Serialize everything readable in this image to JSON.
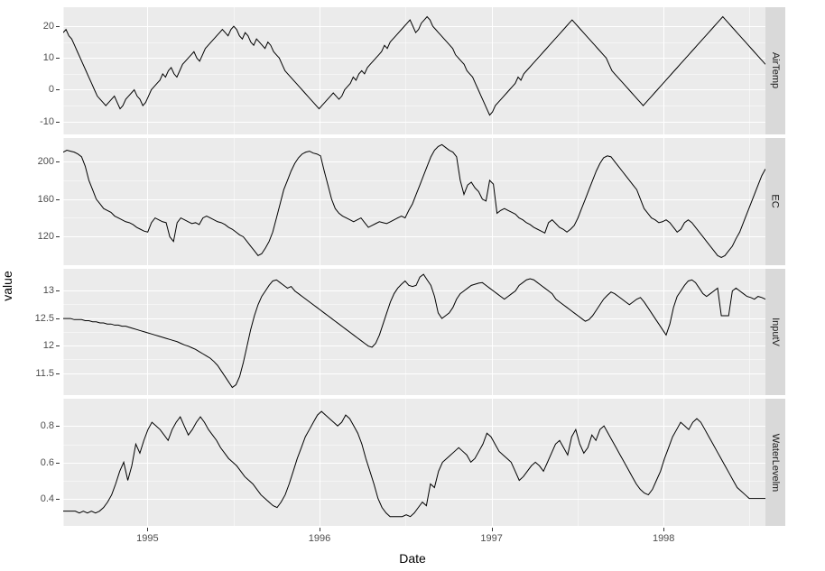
{
  "axis": {
    "y_title": "value",
    "x_title": "Date",
    "x_ticks": [
      {
        "pos": 0.12,
        "label": "1995"
      },
      {
        "pos": 0.365,
        "label": "1996"
      },
      {
        "pos": 0.61,
        "label": "1997"
      },
      {
        "pos": 0.855,
        "label": "1998"
      }
    ],
    "x_minor": [
      0.0,
      0.2425,
      0.4875,
      0.7325,
      0.9775
    ]
  },
  "styling": {
    "panel_bg": "#ebebeb",
    "strip_bg": "#d9d9d9",
    "grid_color": "#ffffff",
    "line_color": "#000000",
    "line_width": 1.0,
    "tick_fontsize": 11,
    "title_fontsize": 14,
    "strip_fontsize": 11
  },
  "panels": [
    {
      "strip": "AirTemp",
      "ylim": [
        -14,
        26
      ],
      "yticks": [
        -10,
        0,
        10,
        20
      ],
      "series": [
        18,
        19,
        17,
        16,
        14,
        12,
        10,
        8,
        6,
        4,
        2,
        0,
        -2,
        -3,
        -4,
        -5,
        -4,
        -3,
        -2,
        -4,
        -6,
        -5,
        -3,
        -2,
        -1,
        0,
        -2,
        -3,
        -5,
        -4,
        -2,
        0,
        1,
        2,
        3,
        5,
        4,
        6,
        7,
        5,
        4,
        6,
        8,
        9,
        10,
        11,
        12,
        10,
        9,
        11,
        13,
        14,
        15,
        16,
        17,
        18,
        19,
        18,
        17,
        19,
        20,
        19,
        17,
        16,
        18,
        17,
        15,
        14,
        16,
        15,
        14,
        13,
        15,
        14,
        12,
        11,
        10,
        8,
        6,
        5,
        4,
        3,
        2,
        1,
        0,
        -1,
        -2,
        -3,
        -4,
        -5,
        -6,
        -5,
        -4,
        -3,
        -2,
        -1,
        -2,
        -3,
        -2,
        0,
        1,
        2,
        4,
        3,
        5,
        6,
        5,
        7,
        8,
        9,
        10,
        11,
        12,
        14,
        13,
        15,
        16,
        17,
        18,
        19,
        20,
        21,
        22,
        20,
        18,
        19,
        21,
        22,
        23,
        22,
        20,
        19,
        18,
        17,
        16,
        15,
        14,
        13,
        11,
        10,
        9,
        8,
        6,
        5,
        4,
        2,
        0,
        -2,
        -4,
        -6,
        -8,
        -7,
        -5,
        -4,
        -3,
        -2,
        -1,
        0,
        1,
        2,
        4,
        3,
        5,
        6,
        7,
        8,
        9,
        10,
        11,
        12,
        13,
        14,
        15,
        16,
        17,
        18,
        19,
        20,
        21,
        22,
        21,
        20,
        19,
        18,
        17,
        16,
        15,
        14,
        13,
        12,
        11,
        10,
        8,
        6,
        5,
        4,
        3,
        2,
        1,
        0,
        -1,
        -2,
        -3,
        -4,
        -5,
        -4,
        -3,
        -2,
        -1,
        0,
        1,
        2,
        3,
        4,
        5,
        6,
        7,
        8,
        9,
        10,
        11,
        12,
        13,
        14,
        15,
        16,
        17,
        18,
        19,
        20,
        21,
        22,
        23,
        22,
        21,
        20,
        19,
        18,
        17,
        16,
        15,
        14,
        13,
        12,
        11,
        10,
        9,
        8
      ]
    },
    {
      "strip": "EC",
      "ylim": [
        90,
        225
      ],
      "yticks": [
        120,
        160,
        200
      ],
      "series": [
        210,
        212,
        211,
        210,
        208,
        205,
        195,
        180,
        170,
        160,
        155,
        150,
        148,
        146,
        142,
        140,
        138,
        136,
        135,
        133,
        130,
        128,
        126,
        125,
        135,
        140,
        138,
        136,
        135,
        120,
        115,
        135,
        140,
        138,
        136,
        134,
        135,
        133,
        140,
        142,
        140,
        138,
        136,
        135,
        133,
        130,
        128,
        125,
        122,
        120,
        115,
        110,
        105,
        100,
        102,
        108,
        115,
        125,
        140,
        155,
        170,
        180,
        190,
        198,
        204,
        208,
        210,
        211,
        209,
        208,
        206,
        190,
        175,
        160,
        150,
        145,
        142,
        140,
        138,
        136,
        138,
        140,
        135,
        130,
        132,
        134,
        136,
        135,
        134,
        136,
        138,
        140,
        142,
        140,
        148,
        155,
        165,
        175,
        185,
        195,
        205,
        212,
        216,
        218,
        215,
        212,
        210,
        205,
        180,
        165,
        175,
        178,
        172,
        168,
        160,
        158,
        180,
        176,
        145,
        148,
        150,
        148,
        146,
        144,
        140,
        138,
        135,
        133,
        130,
        128,
        126,
        124,
        135,
        138,
        134,
        130,
        128,
        125,
        128,
        132,
        140,
        150,
        160,
        170,
        180,
        190,
        198,
        204,
        206,
        205,
        200,
        195,
        190,
        185,
        180,
        175,
        170,
        160,
        150,
        145,
        140,
        138,
        135,
        136,
        138,
        135,
        130,
        125,
        128,
        135,
        138,
        135,
        130,
        125,
        120,
        115,
        110,
        105,
        100,
        98,
        100,
        105,
        110,
        118,
        125,
        135,
        145,
        155,
        165,
        175,
        185,
        192
      ]
    },
    {
      "strip": "InputV",
      "ylim": [
        11.1,
        13.4
      ],
      "yticks": [
        11.5,
        12.0,
        12.5,
        13.0
      ],
      "series": [
        12.5,
        12.5,
        12.5,
        12.48,
        12.48,
        12.48,
        12.46,
        12.46,
        12.44,
        12.44,
        12.42,
        12.42,
        12.4,
        12.4,
        12.38,
        12.38,
        12.36,
        12.36,
        12.34,
        12.32,
        12.3,
        12.28,
        12.26,
        12.24,
        12.22,
        12.2,
        12.18,
        12.16,
        12.14,
        12.12,
        12.1,
        12.08,
        12.05,
        12.02,
        12.0,
        11.97,
        11.94,
        11.9,
        11.86,
        11.82,
        11.78,
        11.72,
        11.65,
        11.55,
        11.45,
        11.35,
        11.25,
        11.3,
        11.45,
        11.7,
        12.0,
        12.3,
        12.55,
        12.75,
        12.9,
        13.0,
        13.1,
        13.18,
        13.2,
        13.15,
        13.1,
        13.05,
        13.08,
        13.0,
        12.95,
        12.9,
        12.85,
        12.8,
        12.75,
        12.7,
        12.65,
        12.6,
        12.55,
        12.5,
        12.45,
        12.4,
        12.35,
        12.3,
        12.25,
        12.2,
        12.15,
        12.1,
        12.05,
        12.0,
        11.98,
        12.05,
        12.2,
        12.4,
        12.6,
        12.8,
        12.95,
        13.05,
        13.12,
        13.18,
        13.1,
        13.08,
        13.1,
        13.25,
        13.3,
        13.2,
        13.1,
        12.9,
        12.6,
        12.5,
        12.55,
        12.6,
        12.7,
        12.85,
        12.95,
        13.0,
        13.05,
        13.1,
        13.12,
        13.14,
        13.15,
        13.1,
        13.05,
        13.0,
        12.95,
        12.9,
        12.85,
        12.9,
        12.95,
        13.0,
        13.1,
        13.15,
        13.2,
        13.22,
        13.2,
        13.15,
        13.1,
        13.05,
        13.0,
        12.95,
        12.85,
        12.8,
        12.75,
        12.7,
        12.65,
        12.6,
        12.55,
        12.5,
        12.45,
        12.48,
        12.55,
        12.65,
        12.75,
        12.85,
        12.92,
        12.98,
        12.95,
        12.9,
        12.85,
        12.8,
        12.75,
        12.8,
        12.85,
        12.88,
        12.8,
        12.7,
        12.6,
        12.5,
        12.4,
        12.3,
        12.2,
        12.4,
        12.7,
        12.9,
        13.0,
        13.1,
        13.18,
        13.2,
        13.15,
        13.05,
        12.95,
        12.9,
        12.95,
        13.0,
        13.05,
        12.55,
        12.55,
        12.55,
        13.0,
        13.05,
        13.0,
        12.95,
        12.9,
        12.88,
        12.85,
        12.9,
        12.88,
        12.85
      ]
    },
    {
      "strip": "WaterLevelm",
      "ylim": [
        0.25,
        0.95
      ],
      "yticks": [
        0.4,
        0.6,
        0.8
      ],
      "series": [
        0.33,
        0.33,
        0.33,
        0.33,
        0.32,
        0.33,
        0.32,
        0.33,
        0.32,
        0.33,
        0.35,
        0.38,
        0.42,
        0.48,
        0.55,
        0.6,
        0.5,
        0.58,
        0.7,
        0.65,
        0.72,
        0.78,
        0.82,
        0.8,
        0.78,
        0.75,
        0.72,
        0.78,
        0.82,
        0.85,
        0.8,
        0.75,
        0.78,
        0.82,
        0.85,
        0.82,
        0.78,
        0.75,
        0.72,
        0.68,
        0.65,
        0.62,
        0.6,
        0.58,
        0.55,
        0.52,
        0.5,
        0.48,
        0.45,
        0.42,
        0.4,
        0.38,
        0.36,
        0.35,
        0.38,
        0.42,
        0.48,
        0.55,
        0.62,
        0.68,
        0.74,
        0.78,
        0.82,
        0.86,
        0.88,
        0.86,
        0.84,
        0.82,
        0.8,
        0.82,
        0.86,
        0.84,
        0.8,
        0.76,
        0.7,
        0.62,
        0.55,
        0.48,
        0.4,
        0.35,
        0.32,
        0.3,
        0.3,
        0.3,
        0.3,
        0.31,
        0.3,
        0.32,
        0.35,
        0.38,
        0.36,
        0.48,
        0.46,
        0.55,
        0.6,
        0.62,
        0.64,
        0.66,
        0.68,
        0.66,
        0.64,
        0.6,
        0.62,
        0.66,
        0.7,
        0.76,
        0.74,
        0.7,
        0.66,
        0.64,
        0.62,
        0.6,
        0.55,
        0.5,
        0.52,
        0.55,
        0.58,
        0.6,
        0.58,
        0.55,
        0.6,
        0.65,
        0.7,
        0.72,
        0.68,
        0.64,
        0.74,
        0.78,
        0.7,
        0.65,
        0.68,
        0.75,
        0.72,
        0.78,
        0.8,
        0.76,
        0.72,
        0.68,
        0.64,
        0.6,
        0.56,
        0.52,
        0.48,
        0.45,
        0.43,
        0.42,
        0.45,
        0.5,
        0.55,
        0.62,
        0.68,
        0.74,
        0.78,
        0.82,
        0.8,
        0.78,
        0.82,
        0.84,
        0.82,
        0.78,
        0.74,
        0.7,
        0.66,
        0.62,
        0.58,
        0.54,
        0.5,
        0.46,
        0.44,
        0.42,
        0.4,
        0.4,
        0.4,
        0.4,
        0.4
      ]
    }
  ]
}
